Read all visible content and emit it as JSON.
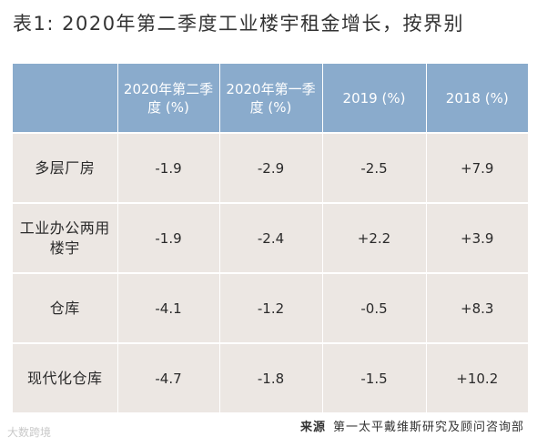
{
  "title": "表1: 2020年第二季度工业楼宇租金增长，按界别",
  "table": {
    "headers": [
      "",
      "2020年第二季度 (%)",
      "2020年第一季度 (%)",
      "2019 (%)",
      "2018 (%)"
    ],
    "rows": [
      {
        "label": "多层厂房",
        "values": [
          "-1.9",
          "-2.9",
          "-2.5",
          "+7.9"
        ]
      },
      {
        "label": "工业办公两用楼宇",
        "values": [
          "-1.9",
          "-2.4",
          "+2.2",
          "+3.9"
        ]
      },
      {
        "label": "仓库",
        "values": [
          "-4.1",
          "-1.2",
          "-0.5",
          "+8.3"
        ]
      },
      {
        "label": "现代化仓库",
        "values": [
          "-4.7",
          "-1.8",
          "-1.5",
          "+10.2"
        ]
      }
    ]
  },
  "source": {
    "label": "来源",
    "text": "第一太平戴维斯研究及顾问咨询部"
  },
  "watermark": "大数跨境",
  "colors": {
    "header_bg": "#8aabcc",
    "body_bg": "#ece7e3"
  }
}
